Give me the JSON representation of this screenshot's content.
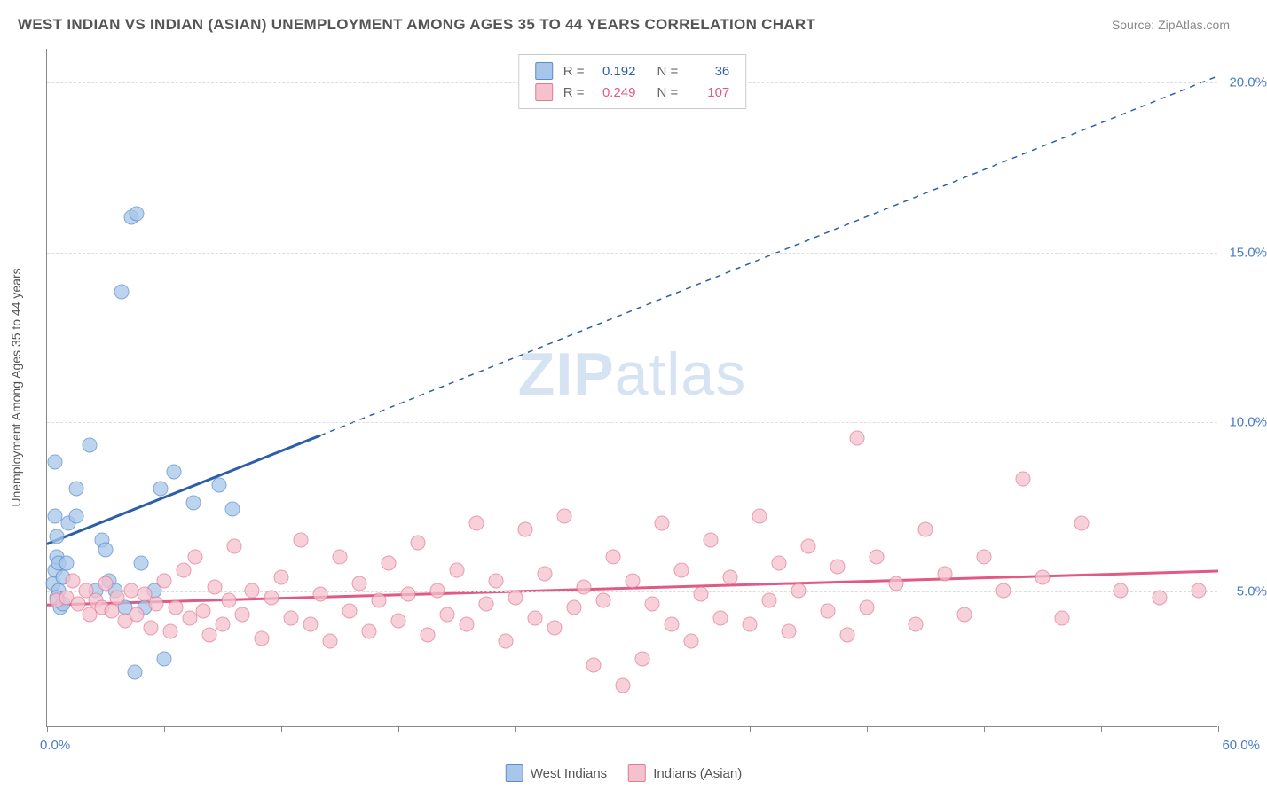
{
  "title": "WEST INDIAN VS INDIAN (ASIAN) UNEMPLOYMENT AMONG AGES 35 TO 44 YEARS CORRELATION CHART",
  "source_label": "Source: ZipAtlas.com",
  "y_axis_label": "Unemployment Among Ages 35 to 44 years",
  "watermark_zip": "ZIP",
  "watermark_atlas": "atlas",
  "chart": {
    "type": "scatter",
    "xlim": [
      0,
      60
    ],
    "ylim": [
      1,
      21
    ],
    "x_ticks": [
      0,
      6,
      12,
      18,
      24,
      30,
      36,
      42,
      48,
      54,
      60
    ],
    "y_gridlines": [
      5,
      10,
      15,
      20
    ],
    "x_min_label": "0.0%",
    "x_max_label": "60.0%",
    "y_tick_labels": {
      "5": "5.0%",
      "10": "10.0%",
      "15": "15.0%",
      "20": "20.0%"
    },
    "background_color": "#ffffff",
    "grid_color": "#dddddd",
    "marker_size": 17,
    "series": [
      {
        "name": "West Indians",
        "color_fill": "#a8c6ea",
        "color_stroke": "#5a8cc9",
        "color_line": "#2c5fa8",
        "r_label": "R =",
        "r_value": "0.192",
        "n_label": "N =",
        "n_value": "36",
        "trend": {
          "x1": 0,
          "y1": 6.4,
          "x2_solid": 14,
          "y2_solid": 9.6,
          "x2": 60,
          "y2": 20.2
        },
        "points": [
          [
            0.3,
            5.2
          ],
          [
            0.4,
            5.6
          ],
          [
            0.5,
            6.0
          ],
          [
            0.5,
            6.6
          ],
          [
            0.4,
            7.2
          ],
          [
            0.6,
            5.8
          ],
          [
            0.6,
            5.0
          ],
          [
            0.7,
            4.5
          ],
          [
            0.8,
            5.4
          ],
          [
            0.4,
            8.8
          ],
          [
            0.5,
            4.8
          ],
          [
            0.8,
            4.6
          ],
          [
            1.0,
            5.8
          ],
          [
            1.1,
            7.0
          ],
          [
            1.5,
            7.2
          ],
          [
            1.5,
            8.0
          ],
          [
            2.2,
            9.3
          ],
          [
            2.8,
            6.5
          ],
          [
            2.5,
            5.0
          ],
          [
            3.0,
            6.2
          ],
          [
            3.2,
            5.3
          ],
          [
            3.5,
            5.0
          ],
          [
            4.8,
            5.8
          ],
          [
            5.0,
            4.5
          ],
          [
            5.5,
            5.0
          ],
          [
            6.0,
            3.0
          ],
          [
            5.8,
            8.0
          ],
          [
            4.5,
            2.6
          ],
          [
            6.5,
            8.5
          ],
          [
            4.0,
            4.5
          ],
          [
            7.5,
            7.6
          ],
          [
            8.8,
            8.1
          ],
          [
            9.5,
            7.4
          ],
          [
            3.8,
            13.8
          ],
          [
            4.3,
            16.0
          ],
          [
            4.6,
            16.1
          ]
        ]
      },
      {
        "name": "Indians (Asian)",
        "color_fill": "#f5c1cd",
        "color_stroke": "#e07b96",
        "color_line": "#e05a84",
        "r_label": "R =",
        "r_value": "0.249",
        "n_label": "N =",
        "n_value": "107",
        "trend": {
          "x1": 0,
          "y1": 4.6,
          "x2_solid": 60,
          "y2_solid": 5.6,
          "x2": 60,
          "y2": 5.6
        },
        "points": [
          [
            0.5,
            4.7
          ],
          [
            1.0,
            4.8
          ],
          [
            1.3,
            5.3
          ],
          [
            1.6,
            4.6
          ],
          [
            2.0,
            5.0
          ],
          [
            2.2,
            4.3
          ],
          [
            2.5,
            4.7
          ],
          [
            2.8,
            4.5
          ],
          [
            3.0,
            5.2
          ],
          [
            3.3,
            4.4
          ],
          [
            3.6,
            4.8
          ],
          [
            4.0,
            4.1
          ],
          [
            4.3,
            5.0
          ],
          [
            4.6,
            4.3
          ],
          [
            5.0,
            4.9
          ],
          [
            5.3,
            3.9
          ],
          [
            5.6,
            4.6
          ],
          [
            6.0,
            5.3
          ],
          [
            6.3,
            3.8
          ],
          [
            6.6,
            4.5
          ],
          [
            7.0,
            5.6
          ],
          [
            7.3,
            4.2
          ],
          [
            7.6,
            6.0
          ],
          [
            8.0,
            4.4
          ],
          [
            8.3,
            3.7
          ],
          [
            8.6,
            5.1
          ],
          [
            9.0,
            4.0
          ],
          [
            9.3,
            4.7
          ],
          [
            9.6,
            6.3
          ],
          [
            10.0,
            4.3
          ],
          [
            10.5,
            5.0
          ],
          [
            11.0,
            3.6
          ],
          [
            11.5,
            4.8
          ],
          [
            12.0,
            5.4
          ],
          [
            12.5,
            4.2
          ],
          [
            13.0,
            6.5
          ],
          [
            13.5,
            4.0
          ],
          [
            14.0,
            4.9
          ],
          [
            14.5,
            3.5
          ],
          [
            15.0,
            6.0
          ],
          [
            15.5,
            4.4
          ],
          [
            16.0,
            5.2
          ],
          [
            16.5,
            3.8
          ],
          [
            17.0,
            4.7
          ],
          [
            17.5,
            5.8
          ],
          [
            18.0,
            4.1
          ],
          [
            18.5,
            4.9
          ],
          [
            19.0,
            6.4
          ],
          [
            19.5,
            3.7
          ],
          [
            20.0,
            5.0
          ],
          [
            20.5,
            4.3
          ],
          [
            21.0,
            5.6
          ],
          [
            21.5,
            4.0
          ],
          [
            22.0,
            7.0
          ],
          [
            22.5,
            4.6
          ],
          [
            23.0,
            5.3
          ],
          [
            23.5,
            3.5
          ],
          [
            24.0,
            4.8
          ],
          [
            24.5,
            6.8
          ],
          [
            25.0,
            4.2
          ],
          [
            25.5,
            5.5
          ],
          [
            26.0,
            3.9
          ],
          [
            26.5,
            7.2
          ],
          [
            27.0,
            4.5
          ],
          [
            27.5,
            5.1
          ],
          [
            28.0,
            2.8
          ],
          [
            28.5,
            4.7
          ],
          [
            29.0,
            6.0
          ],
          [
            29.5,
            2.2
          ],
          [
            30.0,
            5.3
          ],
          [
            30.5,
            3.0
          ],
          [
            31.0,
            4.6
          ],
          [
            31.5,
            7.0
          ],
          [
            32.0,
            4.0
          ],
          [
            32.5,
            5.6
          ],
          [
            33.0,
            3.5
          ],
          [
            33.5,
            4.9
          ],
          [
            34.0,
            6.5
          ],
          [
            34.5,
            4.2
          ],
          [
            35.0,
            5.4
          ],
          [
            36.0,
            4.0
          ],
          [
            36.5,
            7.2
          ],
          [
            37.0,
            4.7
          ],
          [
            37.5,
            5.8
          ],
          [
            38.0,
            3.8
          ],
          [
            38.5,
            5.0
          ],
          [
            39.0,
            6.3
          ],
          [
            40.0,
            4.4
          ],
          [
            40.5,
            5.7
          ],
          [
            41.0,
            3.7
          ],
          [
            41.5,
            9.5
          ],
          [
            42.0,
            4.5
          ],
          [
            42.5,
            6.0
          ],
          [
            43.5,
            5.2
          ],
          [
            44.5,
            4.0
          ],
          [
            45.0,
            6.8
          ],
          [
            46.0,
            5.5
          ],
          [
            47.0,
            4.3
          ],
          [
            48.0,
            6.0
          ],
          [
            49.0,
            5.0
          ],
          [
            50.0,
            8.3
          ],
          [
            51.0,
            5.4
          ],
          [
            52.0,
            4.2
          ],
          [
            53.0,
            7.0
          ],
          [
            55.0,
            5.0
          ],
          [
            57.0,
            4.8
          ],
          [
            59.0,
            5.0
          ]
        ]
      }
    ]
  }
}
